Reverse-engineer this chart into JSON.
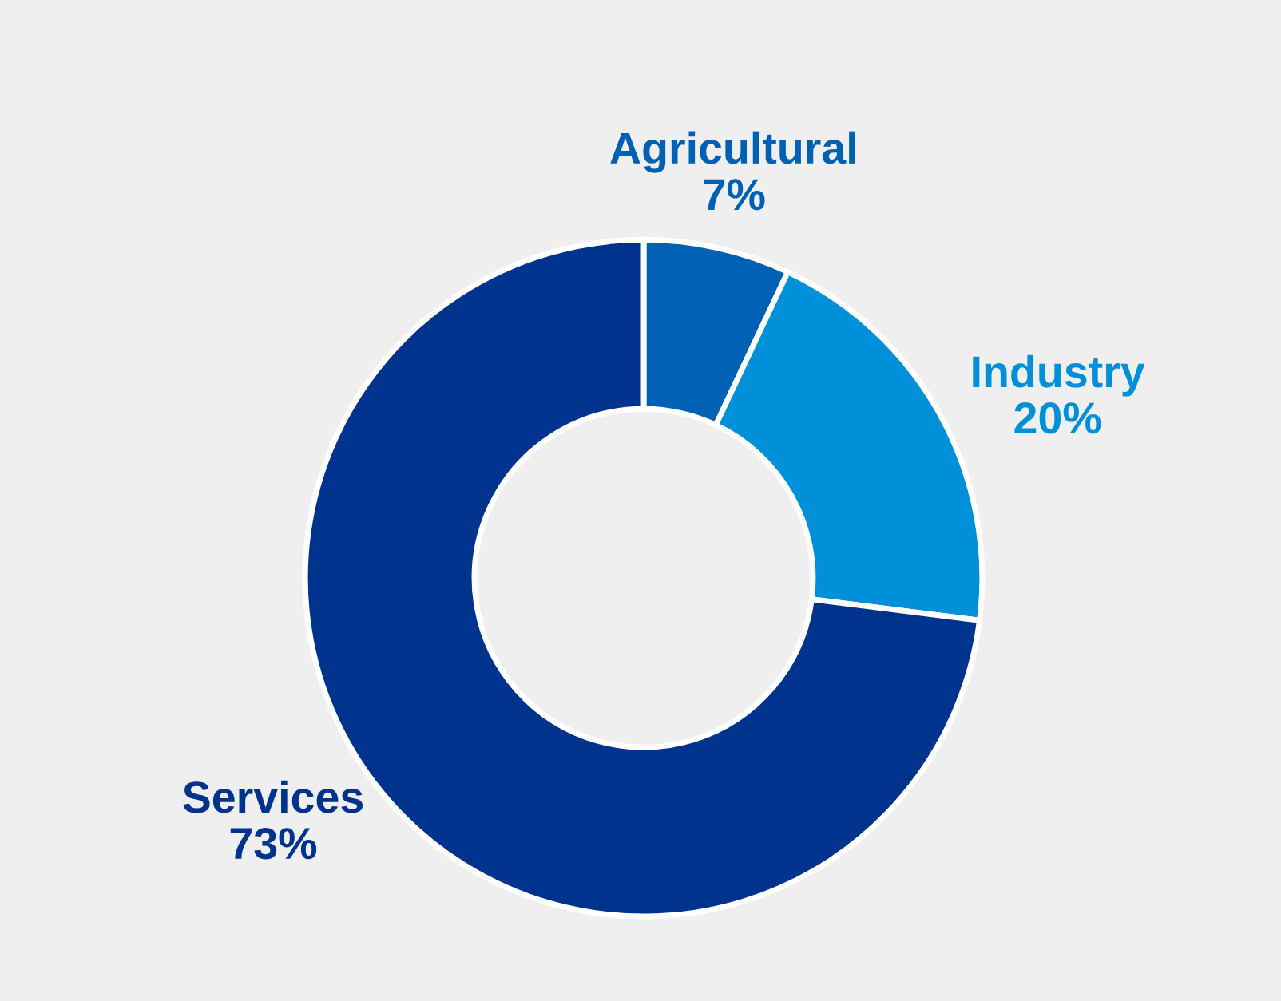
{
  "chart_data": {
    "type": "donut",
    "categories": [
      "Agricultural",
      "Industry",
      "Services"
    ],
    "values": [
      7,
      20,
      73
    ],
    "colors": [
      "#0060b3",
      "#0090d9",
      "#00338d"
    ],
    "value_labels": [
      "7%",
      "20%",
      "73%"
    ]
  }
}
